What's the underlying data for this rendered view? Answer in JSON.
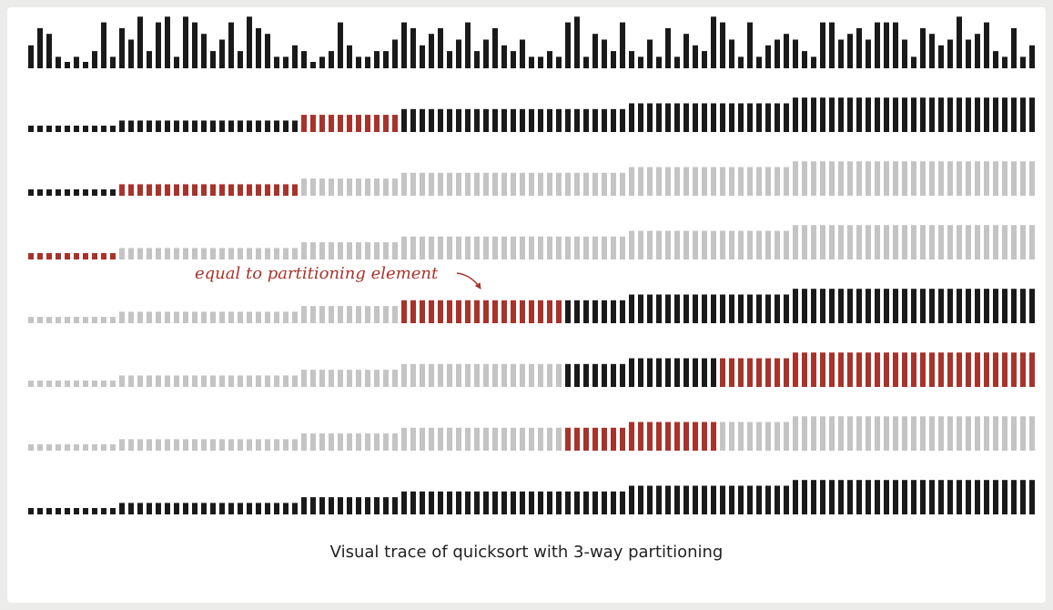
{
  "caption": "Visual trace of quicksort with 3-way partitioning",
  "annotation": "equal to partitioning element",
  "colors": {
    "active": "#1a1a1a",
    "partition": "#a8332b",
    "done": "#c4c4c4",
    "page": "#ececea",
    "panel": "#ffffff"
  },
  "trace": {
    "initial": [
      4,
      7,
      6,
      2,
      1,
      2,
      1,
      3,
      8,
      2,
      7,
      5,
      9,
      3,
      8,
      9,
      2,
      9,
      8,
      6,
      3,
      5,
      8,
      3,
      9,
      7,
      6,
      2,
      2,
      4,
      3,
      1,
      2,
      3,
      8,
      4,
      2,
      2,
      3,
      3,
      5,
      8,
      7,
      4,
      6,
      7,
      3,
      5,
      8,
      3,
      5,
      7,
      4,
      3,
      5,
      2,
      2,
      3,
      2,
      8,
      9,
      2,
      6,
      5,
      3,
      8,
      3,
      2,
      5,
      2,
      7,
      2,
      6,
      4,
      3,
      9,
      8,
      5,
      2,
      8,
      2,
      4,
      5,
      6,
      5,
      3,
      2,
      8,
      8,
      5,
      6,
      7,
      5,
      8,
      8,
      8,
      5,
      2,
      7,
      6,
      4,
      5,
      9,
      5,
      6,
      8,
      3,
      2,
      7,
      2,
      4
    ],
    "final": [
      1,
      1,
      1,
      1,
      1,
      1,
      1,
      1,
      1,
      1,
      2,
      2,
      2,
      2,
      2,
      2,
      2,
      2,
      2,
      2,
      2,
      2,
      2,
      2,
      2,
      2,
      2,
      2,
      2,
      2,
      3,
      3,
      3,
      3,
      3,
      3,
      3,
      3,
      3,
      3,
      3,
      4,
      4,
      4,
      4,
      4,
      4,
      4,
      4,
      4,
      4,
      4,
      4,
      4,
      4,
      4,
      4,
      4,
      4,
      4,
      4,
      4,
      4,
      4,
      4,
      4,
      5,
      5,
      5,
      5,
      5,
      5,
      5,
      5,
      5,
      5,
      5,
      5,
      5,
      5,
      5,
      5,
      5,
      5,
      6,
      6,
      6,
      6,
      6,
      6,
      6,
      6,
      6,
      6,
      6,
      6,
      6,
      6,
      6,
      6,
      6,
      6,
      6,
      6,
      6,
      6,
      6,
      6,
      6,
      6,
      6
    ],
    "steps": [
      {
        "lo": 0,
        "hi": 110,
        "lt": 30,
        "gt": 40
      },
      {
        "lo": 0,
        "hi": 29,
        "lt": 10,
        "gt": 29
      },
      {
        "lo": 0,
        "hi": 9,
        "lt": 0,
        "gt": 9
      },
      {
        "lo": 41,
        "hi": 110,
        "lt": 41,
        "gt": 58,
        "annotate": true
      },
      {
        "lo": 59,
        "hi": 110,
        "lt": 76,
        "gt": 110
      },
      {
        "lo": 59,
        "hi": 75,
        "lt": 59,
        "gt": 75
      }
    ]
  }
}
